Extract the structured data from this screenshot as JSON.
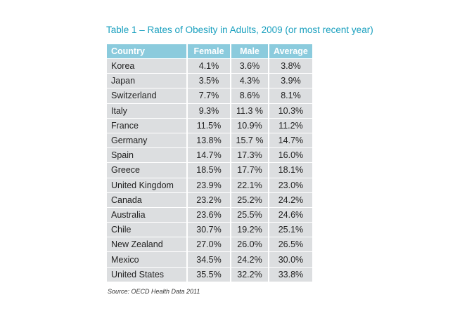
{
  "title": "Table 1 – Rates of Obesity in Adults, 2009 (or most recent year)",
  "colors": {
    "title": "#1aa0bf",
    "header_bg": "#8bcbdd",
    "row_bg": "#dcdee0"
  },
  "table": {
    "headers": [
      "Country",
      "Female",
      "Male",
      "Average"
    ],
    "rows": [
      [
        "Korea",
        "4.1%",
        "3.6%",
        "3.8%"
      ],
      [
        "Japan",
        "3.5%",
        "4.3%",
        "3.9%"
      ],
      [
        "Switzerland",
        "7.7%",
        "8.6%",
        "8.1%"
      ],
      [
        "Italy",
        "9.3%",
        "11.3 %",
        "10.3%"
      ],
      [
        "France",
        "11.5%",
        "10.9%",
        "11.2%"
      ],
      [
        "Germany",
        "13.8%",
        "15.7 %",
        "14.7%"
      ],
      [
        "Spain",
        "14.7%",
        "17.3%",
        "16.0%"
      ],
      [
        "Greece",
        "18.5%",
        "17.7%",
        "18.1%"
      ],
      [
        "United Kingdom",
        "23.9%",
        "22.1%",
        "23.0%"
      ],
      [
        "Canada",
        "23.2%",
        "25.2%",
        "24.2%"
      ],
      [
        "Australia",
        "23.6%",
        "25.5%",
        "24.6%"
      ],
      [
        "Chile",
        "30.7%",
        "19.2%",
        "25.1%"
      ],
      [
        "New Zealand",
        "27.0%",
        "26.0%",
        "26.5%"
      ],
      [
        "Mexico",
        "34.5%",
        "24.2%",
        "30.0%"
      ],
      [
        "United States",
        "35.5%",
        "32.2%",
        "33.8%"
      ]
    ]
  },
  "source": "Source: OECD Health Data 2011"
}
